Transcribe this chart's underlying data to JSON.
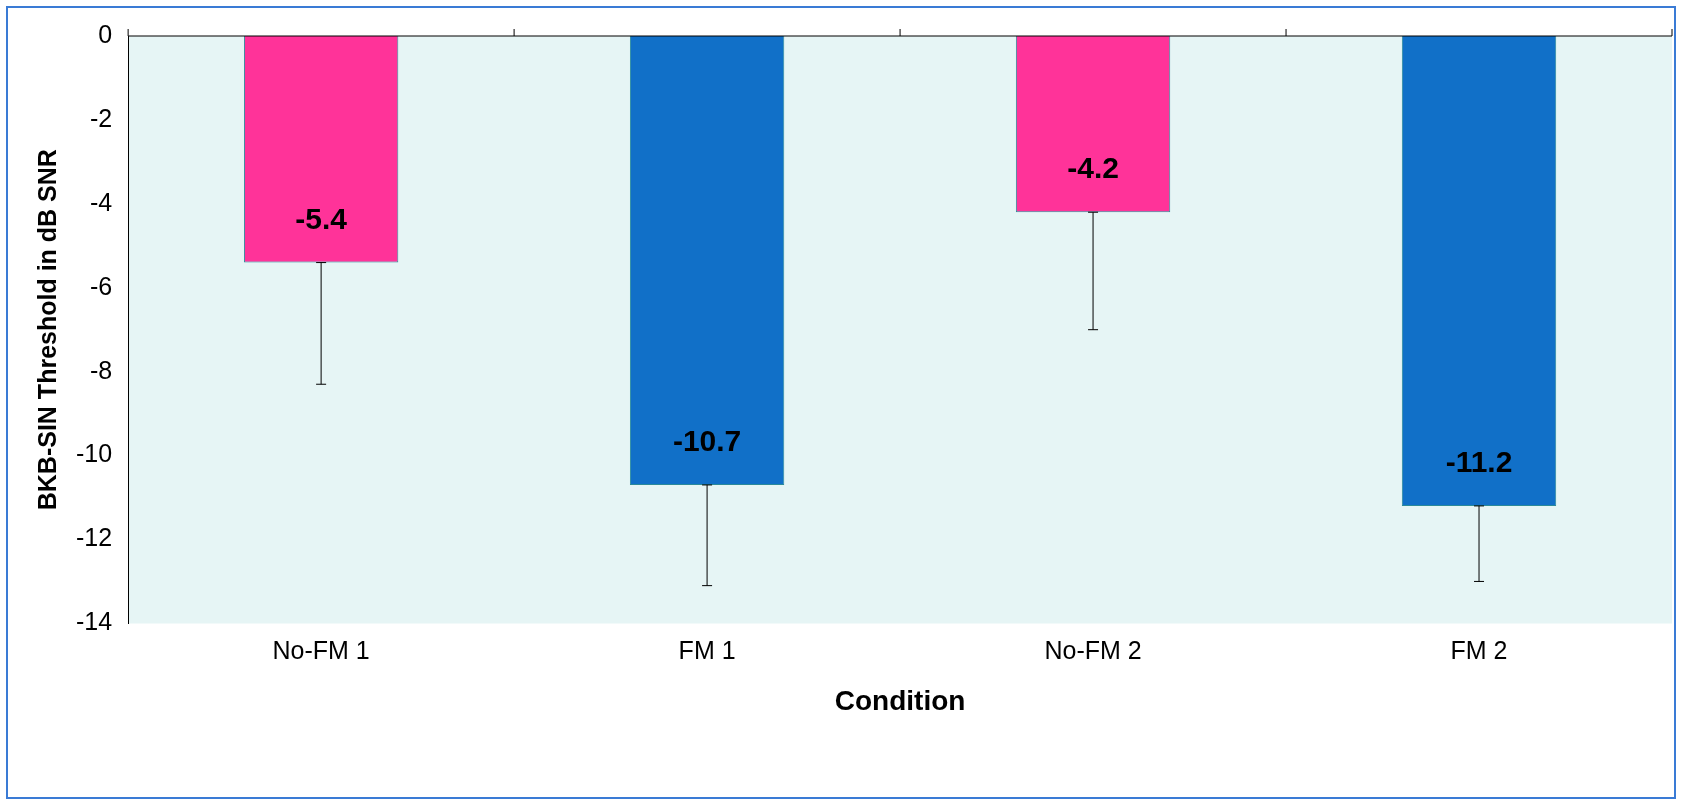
{
  "chart_data": {
    "type": "bar",
    "xlabel": "Condition",
    "ylabel": "BKB-SIN Threshold in dB SNR",
    "categories": [
      "No-FM 1",
      "FM 1",
      "No-FM 2",
      "FM 2"
    ],
    "values": [
      -5.4,
      -10.7,
      -4.2,
      -11.2
    ],
    "colors": [
      "#ff3399",
      "#1170c8",
      "#ff3399",
      "#1170c8"
    ],
    "errors": [
      [
        -8.3,
        -5.4
      ],
      [
        -13.1,
        -10.7
      ],
      [
        -7.0,
        -4.2
      ],
      [
        -13.0,
        -11.2
      ]
    ],
    "ylim": [
      -14,
      0
    ],
    "yticks": [
      -14,
      -12,
      -10,
      -8,
      -6,
      -4,
      -2,
      0
    ],
    "data_labels": true,
    "grid": false,
    "legend": false
  }
}
